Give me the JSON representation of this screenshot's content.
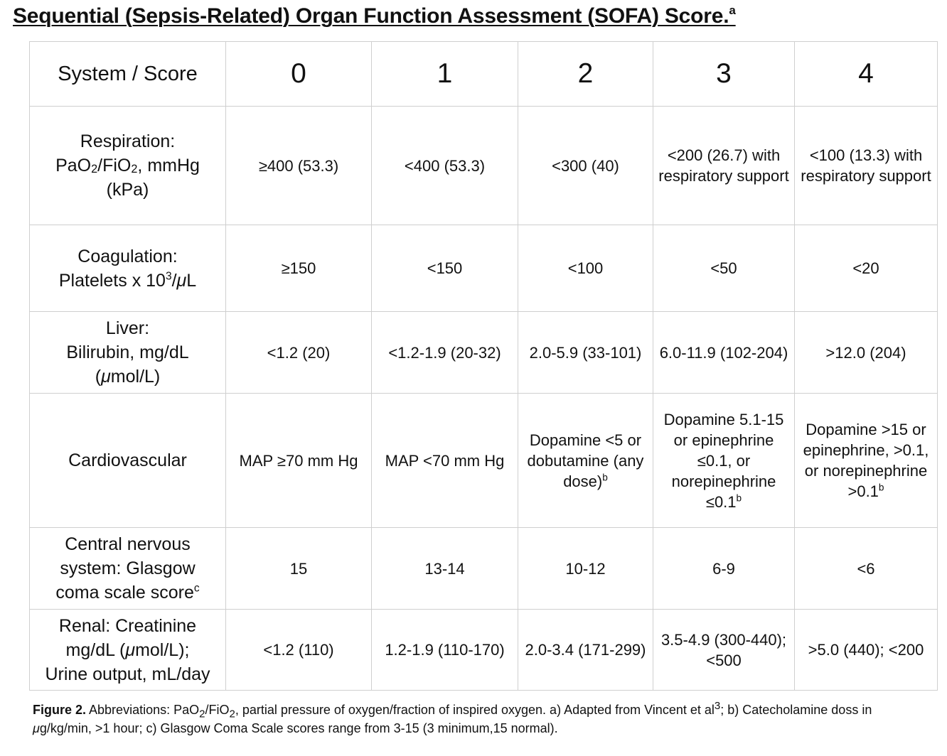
{
  "title": "Sequential (Sepsis-Related) Organ Function Assessment (SOFA) Score.",
  "title_note": "a",
  "header": {
    "system_label": "System / Score",
    "scores": [
      "0",
      "1",
      "2",
      "3",
      "4"
    ]
  },
  "rows": [
    {
      "system": [
        "Respiration:",
        "PaO2/FiO2, mmHg",
        "(kPa)"
      ],
      "values": [
        "≥400 (53.3)",
        "<400 (53.3)",
        "<300 (40)",
        "<200 (26.7) with respiratory support",
        "<100 (13.3) with respiratory support"
      ]
    },
    {
      "system": [
        "Coagulation:",
        "Platelets x 103/μL"
      ],
      "values": [
        "≥150",
        "<150",
        "<100",
        "<50",
        "<20"
      ]
    },
    {
      "system": [
        "Liver:",
        "Bilirubin, mg/dL",
        "(μmol/L)"
      ],
      "values": [
        "<1.2 (20)",
        "<1.2-1.9 (20-32)",
        "2.0-5.9 (33-101)",
        "6.0-11.9 (102-204)",
        ">12.0 (204)"
      ]
    },
    {
      "system": [
        "Cardiovascular"
      ],
      "values": [
        "MAP ≥70 mm Hg",
        "MAP <70 mm Hg",
        "Dopamine <5 or dobutamine (any dose)b",
        "Dopamine 5.1-15 or epinephrine ≤0.1, or norepinephrine ≤0.1b",
        "Dopamine >15 or epinephrine, >0.1, or norepinephrine >0.1b"
      ]
    },
    {
      "system": [
        "Central nervous",
        "system: Glasgow",
        "coma scale scorec"
      ],
      "values": [
        "15",
        "13-14",
        "10-12",
        "6-9",
        "<6"
      ]
    },
    {
      "system": [
        "Renal: Creatinine",
        "mg/dL (μmol/L);",
        "Urine output, mL/day"
      ],
      "values": [
        "<1.2 (110)",
        "1.2-1.9 (110-170)",
        "2.0-3.4 (171-299)",
        "3.5-4.9 (300-440); <500",
        ">5.0 (440); <200"
      ]
    }
  ],
  "caption": {
    "label": "Figure 2.",
    "text": "Abbreviations: PaO2/FiO2, partial pressure of oxygen/fraction of inspired oxygen. a) Adapted from Vincent et al3; b) Catecholamine doss in μg/kg/min, >1 hour; c) Glasgow Coma Scale scores range from 3-15 (3 minimum,15 normal)."
  }
}
